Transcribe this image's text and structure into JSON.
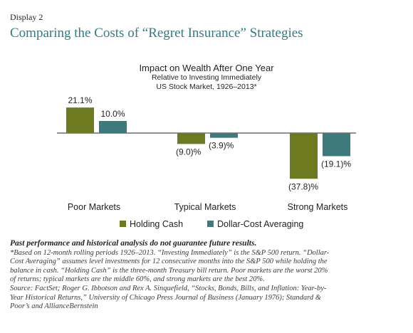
{
  "header": {
    "display_label": "Display 2",
    "title": "Comparing the Costs of “Regret Insurance” Strategies"
  },
  "chart_data": {
    "type": "bar",
    "title": "Impact on Wealth After One Year",
    "subtitle_lines": [
      "Relative to Investing Immediately",
      "US Stock Market, 1926–2013*"
    ],
    "categories": [
      "Poor Markets",
      "Typical Markets",
      "Strong Markets"
    ],
    "series": [
      {
        "name": "Holding Cash",
        "color": "#6e7a1f",
        "values": [
          21.1,
          -9.0,
          -37.8
        ],
        "labels": [
          "21.1%",
          "(9.0)%",
          "(37.8)%"
        ]
      },
      {
        "name": "Dollar-Cost Averaging",
        "color": "#3e7a7c",
        "values": [
          10.0,
          -3.9,
          -19.1
        ],
        "labels": [
          "10.0%",
          "(3.9)%",
          "(19.1)%"
        ]
      }
    ],
    "ylim": [
      -40,
      25
    ],
    "grid": false,
    "legend_position": "bottom-center"
  },
  "footnotes": {
    "bold_line": "Past performance and historical analysis do not guarantee future results.",
    "lines": [
      "*Based on 12-month rolling periods 1926–2013. “Investing Immediately” is the S&P 500 return. “Dollar-",
      "Cost Averaging” assumes level investments for 12 consecutive months into the S&P 500 while holding the",
      " balance in cash. “Holding Cash” is the three-month Treasury bill return. Poor markets are the worst 20%",
      " of returns; typical markets are the middle 60%, and strong markets are the best 20%.",
      "Source: FactSet; Roger G. Ibbotson and Rex A. Sinquefield, “Stocks, Bonds, Bills, and Inflation: Year-by-",
      "Year Historical Returns,” University of Chicago Press Journal of Business (January 1976); Standard &",
      "Poor’s and AllianceBernstein"
    ]
  }
}
